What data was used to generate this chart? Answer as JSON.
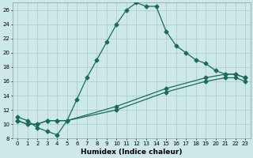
{
  "xlabel": "Humidex (Indice chaleur)",
  "bg_color": "#cce8e8",
  "grid_color": "#b0d0c8",
  "line_color": "#1a6b5a",
  "xlim": [
    -0.5,
    23.5
  ],
  "ylim": [
    8,
    27
  ],
  "xticks": [
    0,
    1,
    2,
    3,
    4,
    5,
    6,
    7,
    8,
    9,
    10,
    11,
    12,
    13,
    14,
    15,
    16,
    17,
    18,
    19,
    20,
    21,
    22,
    23
  ],
  "yticks": [
    8,
    10,
    12,
    14,
    16,
    18,
    20,
    22,
    24,
    26
  ],
  "curve1_x": [
    0,
    1,
    2,
    3,
    4,
    5,
    6,
    7,
    8,
    9,
    10,
    11,
    12,
    13,
    14,
    15,
    16,
    17,
    18,
    19,
    20,
    21,
    22,
    23
  ],
  "curve1_y": [
    11.0,
    10.5,
    9.5,
    9.0,
    8.5,
    10.5,
    13.5,
    16.5,
    19.0,
    21.5,
    24.0,
    26.0,
    27.0,
    26.5,
    26.5,
    23.0,
    21.0,
    20.0,
    19.0,
    18.5,
    17.5,
    17.0,
    17.0,
    16.5
  ],
  "curve2_x": [
    0,
    1,
    2,
    3,
    4,
    5,
    10,
    15,
    19,
    21,
    22,
    23
  ],
  "curve2_y": [
    10.5,
    10.0,
    10.0,
    10.5,
    10.5,
    10.5,
    12.5,
    15.0,
    16.5,
    17.0,
    17.0,
    16.5
  ],
  "curve3_x": [
    0,
    1,
    2,
    3,
    4,
    5,
    10,
    15,
    19,
    21,
    22,
    23
  ],
  "curve3_y": [
    10.5,
    10.0,
    10.0,
    10.5,
    10.5,
    10.5,
    12.0,
    14.5,
    16.0,
    16.5,
    16.5,
    16.0
  ],
  "markersize": 2.5,
  "linewidth": 0.9,
  "tick_fontsize": 5.0,
  "xlabel_fontsize": 6.5
}
